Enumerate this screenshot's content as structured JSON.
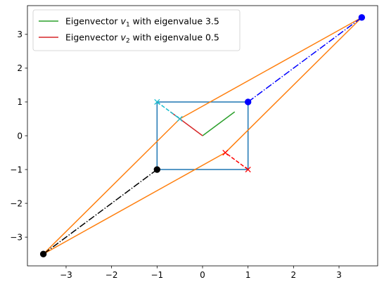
{
  "chart_data": {
    "type": "line",
    "title": "",
    "xlabel": "",
    "ylabel": "",
    "xlim": [
      -3.85,
      3.85
    ],
    "ylim": [
      -3.85,
      3.85
    ],
    "x_ticks": [
      -3,
      -2,
      -1,
      0,
      1,
      2,
      3
    ],
    "y_ticks": [
      -3,
      -2,
      -1,
      0,
      1,
      2,
      3
    ],
    "x_tick_labels": [
      "−3",
      "−2",
      "−1",
      "0",
      "1",
      "2",
      "3"
    ],
    "y_tick_labels": [
      "−3",
      "−2",
      "−1",
      "0",
      "1",
      "2",
      "3"
    ],
    "grid": false,
    "legend": {
      "placement": "top-left",
      "entries": [
        {
          "prefix": "Eigenvector ",
          "var": "v",
          "sub": "1",
          "suffix": " with eigenvalue 3.5",
          "color": "#2ca02c"
        },
        {
          "prefix": "Eigenvector ",
          "var": "v",
          "sub": "2",
          "suffix": " with eigenvalue 0.5",
          "color": "#d62728"
        }
      ]
    },
    "series": [
      {
        "name": "Eigenvector v1 with eigenvalue 3.5",
        "color": "#2ca02c",
        "style": "solid",
        "x": [
          0,
          0.707
        ],
        "y": [
          0,
          0.707
        ]
      },
      {
        "name": "Eigenvector v2 with eigenvalue 0.5",
        "color": "#d62728",
        "style": "solid",
        "x": [
          -0.707,
          0
        ],
        "y": [
          0.707,
          0
        ]
      },
      {
        "color": "#1f77b4",
        "style": "solid",
        "x": [
          -1,
          1,
          1,
          -1,
          -1
        ],
        "y": [
          -1,
          -1,
          1,
          1,
          -1
        ]
      },
      {
        "color": "#ff7f0e",
        "style": "solid",
        "x": [
          -3.5,
          0.5,
          3.5,
          -0.5,
          -3.5
        ],
        "y": [
          -3.5,
          -0.5,
          3.5,
          0.5,
          -3.5
        ]
      },
      {
        "color": "#0000ff",
        "style": "dashdot",
        "x": [
          1,
          3.5
        ],
        "y": [
          1,
          3.5
        ],
        "marker": "circle",
        "marker_x": [
          1,
          3.5
        ],
        "marker_y": [
          1,
          3.5
        ]
      },
      {
        "color": "#000000",
        "style": "dashdot",
        "x": [
          -1,
          -3.5
        ],
        "y": [
          -1,
          -3.5
        ],
        "marker": "circle",
        "marker_x": [
          -1,
          -3.5
        ],
        "marker_y": [
          -1,
          -3.5
        ]
      },
      {
        "color": "#ff0000",
        "style": "dashed",
        "x": [
          1,
          0.5
        ],
        "y": [
          -1,
          -0.5
        ],
        "marker": "x",
        "marker_x": [
          1,
          0.5
        ],
        "marker_y": [
          -1,
          -0.5
        ]
      },
      {
        "color": "#17becf",
        "style": "dashed",
        "x": [
          -1,
          -0.5
        ],
        "y": [
          1,
          0.5
        ],
        "marker": "x",
        "marker_x": [
          -1,
          -0.5
        ],
        "marker_y": [
          1,
          0.5
        ]
      }
    ]
  }
}
